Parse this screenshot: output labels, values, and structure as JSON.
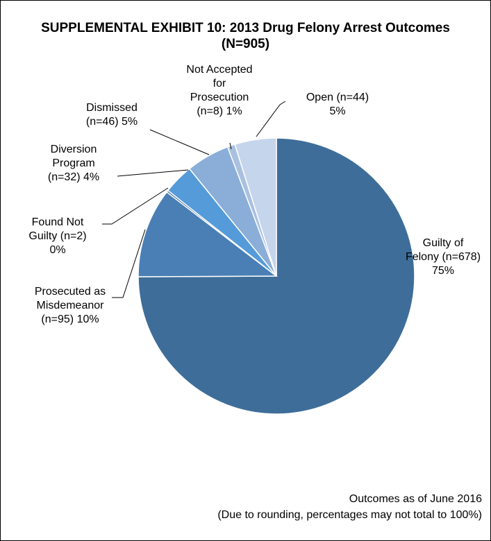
{
  "chart_data": {
    "type": "pie",
    "title": "SUPPLEMENTAL EXHIBIT 10: 2013 Drug Felony Arrest Outcomes (N=905)",
    "categories": [
      "Guilty of Felony",
      "Prosecuted as Misdemeanor",
      "Found Not Guilty",
      "Diversion Program",
      "Dismissed",
      "Not Accepted for Prosecution",
      "Open"
    ],
    "values": [
      678,
      95,
      2,
      32,
      46,
      8,
      44
    ],
    "value_labels": [
      "(n=678)",
      "(n=95)",
      "(n=2)",
      "(n=32)",
      "(n=46)",
      "(n=8)",
      "(n=44)"
    ],
    "percent_labels": [
      "75%",
      "10%",
      "0%",
      "4%",
      "5%",
      "1%",
      "5%"
    ],
    "colors": [
      "#3e6d99",
      "#4a7fb5",
      "#2f6294",
      "#559bd9",
      "#8aaed8",
      "#a9c0e0",
      "#c5d5ec"
    ],
    "notes": [
      "Outcomes as of June 2016",
      "(Due to rounding, percentages may not total to 100%)"
    ]
  }
}
